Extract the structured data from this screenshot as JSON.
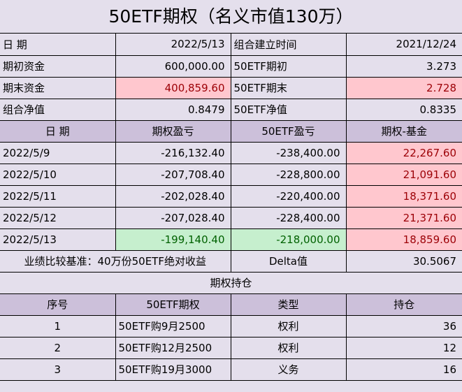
{
  "title": "50ETF期权（名义市值130万）",
  "summary": [
    {
      "label1": "日  期",
      "value1": "2022/5/13",
      "label2": "组合建立时间",
      "value2": "2021/12/24"
    },
    {
      "label1": "期初资金",
      "value1": "600,000.00",
      "label2": "50ETF期初",
      "value2": "3.273"
    },
    {
      "label1": "期末资金",
      "value1": "400,859.60",
      "label2": "50ETF期末",
      "value2": "2.728"
    },
    {
      "label1": "组合净值",
      "value1": "0.8479",
      "label2": "50ETF净值",
      "value2": "0.8335"
    }
  ],
  "daily": {
    "headers": [
      "日  期",
      "期权盈亏",
      "50ETF盈亏",
      "期权-基金"
    ],
    "rows": [
      [
        "2022/5/9",
        "-216,132.40",
        "-238,400.00",
        "22,267.60"
      ],
      [
        "2022/5/10",
        "-207,708.40",
        "-228,800.00",
        "21,091.60"
      ],
      [
        "2022/5/11",
        "-202,028.40",
        "-220,400.00",
        "18,371.60"
      ],
      [
        "2022/5/12",
        "-207,028.40",
        "-228,400.00",
        "21,371.60"
      ],
      [
        "2022/5/13",
        "-199,140.40",
        "-218,000.00",
        "18,859.60"
      ]
    ]
  },
  "benchmark": {
    "label": "业绩比较基准：40万份50ETF绝对收益",
    "delta_label": "Delta值",
    "delta_value": "30.5067"
  },
  "positions": {
    "title": "期权持仓",
    "headers": [
      "序号",
      "50ETF期权",
      "类型",
      "持仓"
    ],
    "rows": [
      [
        "1",
        "50ETF购9月2500",
        "权利",
        "36"
      ],
      [
        "2",
        "50ETF购12月2500",
        "权利",
        "12"
      ],
      [
        "3",
        "50ETF购19月3000",
        "义务",
        "16"
      ]
    ]
  },
  "colors": {
    "background": "#e4dfec",
    "header": "#ccc0da",
    "highlight_pink": "#ffc7ce",
    "highlight_green": "#c6efce",
    "loss_text": "#9c0006",
    "gain_text": "#006100"
  }
}
